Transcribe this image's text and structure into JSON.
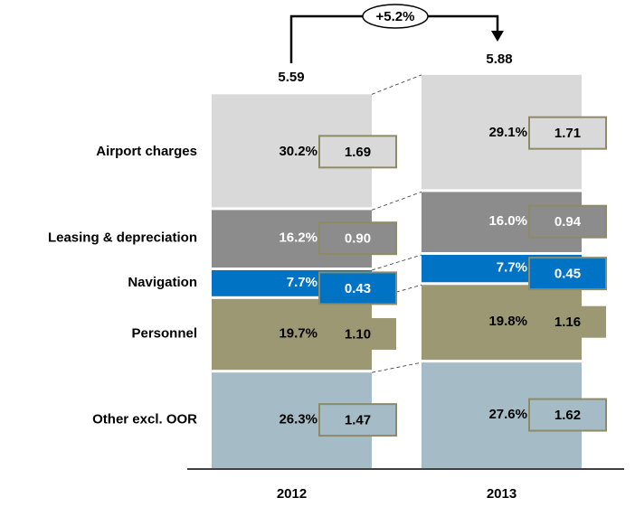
{
  "chart_data": {
    "type": "bar",
    "stacked": true,
    "categories": [
      "2012",
      "2013"
    ],
    "totals": [
      5.59,
      5.88
    ],
    "growth_label": "+5.2%",
    "series": [
      {
        "name": "Other excl. OOR",
        "values": [
          1.47,
          1.62
        ],
        "shares": [
          "26.3%",
          "27.6%"
        ],
        "color": "#a5bcc6"
      },
      {
        "name": "Personnel",
        "values": [
          1.1,
          1.16
        ],
        "shares": [
          "19.7%",
          "19.8%"
        ],
        "color": "#9c9874"
      },
      {
        "name": "Navigation",
        "values": [
          0.43,
          0.45
        ],
        "shares": [
          "7.7%",
          "7.7%"
        ],
        "color": "#0073c4"
      },
      {
        "name": "Leasing & depreciation",
        "values": [
          0.9,
          0.94
        ],
        "shares": [
          "16.2%",
          "16.0%"
        ],
        "color": "#8c8c8c"
      },
      {
        "name": "Airport charges",
        "values": [
          1.69,
          1.71
        ],
        "shares": [
          "30.2%",
          "29.1%"
        ],
        "color": "#d9d9d9"
      }
    ],
    "value_labels": [
      [
        "1.47",
        "1.62"
      ],
      [
        "1.10",
        "1.16"
      ],
      [
        "0.43",
        "0.45"
      ],
      [
        "0.90",
        "0.94"
      ],
      [
        "1.69",
        "1.71"
      ]
    ],
    "total_labels": [
      "5.59",
      "5.88"
    ]
  }
}
